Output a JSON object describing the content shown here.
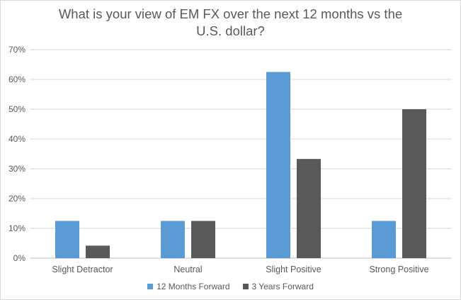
{
  "chart_data": {
    "type": "bar",
    "title_lines": [
      "What is your view of EM FX over the next 12 months vs the",
      "U.S. dollar?"
    ],
    "categories": [
      "Slight Detractor",
      "Neutral",
      "Slight Positive",
      "Strong Positive"
    ],
    "series": [
      {
        "name": "12 Months Forward",
        "color": "#5b9bd5",
        "values": [
          12.5,
          12.5,
          62.5,
          12.5
        ]
      },
      {
        "name": "3 Years Forward",
        "color": "#595959",
        "values": [
          4.2,
          12.5,
          33.3,
          50.0
        ]
      }
    ],
    "ylim": [
      0,
      70
    ],
    "yticks": [
      "0%",
      "10%",
      "20%",
      "30%",
      "40%",
      "50%",
      "60%",
      "70%"
    ],
    "grid": true,
    "legend_position": "bottom"
  }
}
